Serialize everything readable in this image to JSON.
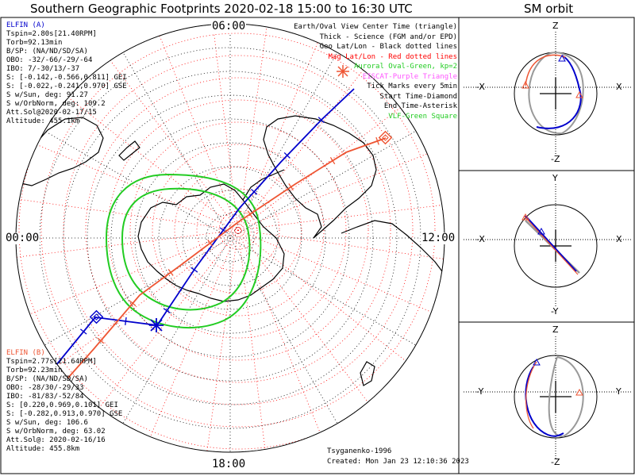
{
  "header": {
    "main_title": "Southern Geographic Footprints 2020-02-18 15:00 to 16:30 UTC",
    "orbit_title": "SM orbit"
  },
  "clock": {
    "top": "06:00",
    "left": "00:00",
    "right": "12:00",
    "bottom": "18:00"
  },
  "probe_a": {
    "name": "ELFIN (A)",
    "color": "#0000cc",
    "lines": [
      "Tspin=2.80s[21.40RPM]",
      "Torb=92.13min",
      "B/SP: (NA/ND/SD/SA)",
      "OBO: -32/-66/-29/-64",
      "IBO: 7/-30/13/-37",
      "S: [-0.142,-0.566,0.811] GEI",
      "S: [-0.022,-0.241,0.970] GSE",
      "S w/Sun, deg: 91.27",
      "S w/OrbNorm, deg: 109.2",
      "Att.Sol@2020-02-17/15",
      "Altitude: 455.1km"
    ]
  },
  "probe_b": {
    "name": "ELFIN (B)",
    "color": "#ee5533",
    "lines": [
      "Tspin=2.77s[21.64RPM]",
      "Torb=92.23min",
      "B/SP: (NA/ND/SD/SA)",
      "OBO: -28/30/-29/33",
      "IBO: -81/83/-52/84",
      "S: [0.220,0.969,0.101] GEI",
      "S: [-0.282,0.913,0.970] GSE",
      "S w/Sun, deg: 106.6",
      "S w/OrbNorm, deg: 63.02",
      "Att.Sol@: 2020-02-16/16",
      "Altitude: 455.8km"
    ]
  },
  "legend": {
    "items": [
      {
        "text": "Earth/Oval View Center Time (triangle)",
        "color": "#000000"
      },
      {
        "text": "Thick - Science (FGM and/or EPD)",
        "color": "#000000"
      },
      {
        "text": "Geo Lat/Lon - Black dotted lines",
        "color": "#000000"
      },
      {
        "text": "Mag Lat/Lon - Red dotted lines",
        "color": "#ff0000"
      },
      {
        "text": "Auroral Oval-Green, kp=2",
        "color": "#22cc22"
      },
      {
        "text": "EISCAT-Purple Triangle",
        "color": "#ff55ff"
      },
      {
        "text": "Tick Marks every 5min",
        "color": "#000000"
      },
      {
        "text": "Start Time-Diamond",
        "color": "#000000"
      },
      {
        "text": "End Time-Asterisk",
        "color": "#000000"
      },
      {
        "text": "VLF-Green Square",
        "color": "#22cc22"
      }
    ]
  },
  "credits": {
    "model": "Tsyganenko-1996",
    "created": "Created: Mon Jan 23 12:10:36 2023"
  },
  "orbit_panels": [
    {
      "top": "Z",
      "bottom": "-Z",
      "left": "-X",
      "right": "X"
    },
    {
      "top": "Y",
      "bottom": "-Y",
      "left": "-X",
      "right": "X"
    },
    {
      "top": "Z",
      "bottom": "-Z",
      "left": "-Y",
      "right": "Y"
    }
  ],
  "colors": {
    "geo_grid": "#000000",
    "mag_grid": "#ff0000",
    "aurora": "#22cc22",
    "probe_a": "#0000cc",
    "probe_b": "#ee5533",
    "orbit_gray": "#999999"
  }
}
